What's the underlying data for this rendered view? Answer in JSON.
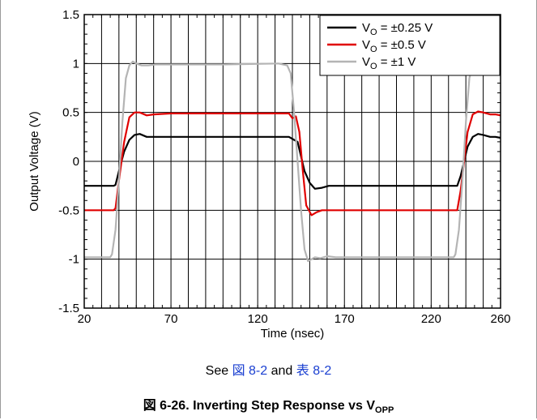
{
  "chart_data": {
    "type": "line",
    "xlabel": "Time (nsec)",
    "ylabel": "Output Voltage (V)",
    "xlim": [
      20,
      260
    ],
    "ylim": [
      -1.5,
      1.5
    ],
    "x_ticks": [
      20,
      70,
      120,
      170,
      220,
      260
    ],
    "y_ticks": [
      -1.5,
      -1,
      -0.5,
      0,
      0.5,
      1,
      1.5
    ],
    "x_tick_labels": [
      "20",
      "70",
      "120",
      "170",
      "220",
      "260"
    ],
    "y_tick_labels": [
      "-1.5",
      "-1",
      "-0.5",
      "0",
      "0.5",
      "1",
      "1.5"
    ],
    "grid": true,
    "legend_position": "top-right",
    "series": [
      {
        "name": "VO = ±0.25 V",
        "label_main": "V",
        "label_sub": "O",
        "label_rest": " = ±0.25 V",
        "color": "#000000",
        "x": [
          20,
          37,
          38,
          40,
          43,
          46,
          49,
          52,
          56,
          60,
          70,
          100,
          138,
          141,
          143,
          145,
          147,
          150,
          153,
          157,
          161,
          170,
          200,
          235,
          237,
          239,
          241,
          244,
          247,
          250,
          254,
          257,
          260
        ],
        "y": [
          -0.25,
          -0.25,
          -0.24,
          -0.1,
          0.1,
          0.22,
          0.27,
          0.28,
          0.25,
          0.25,
          0.25,
          0.25,
          0.25,
          0.22,
          0.2,
          0.05,
          -0.1,
          -0.22,
          -0.28,
          -0.27,
          -0.25,
          -0.25,
          -0.25,
          -0.25,
          -0.15,
          0.0,
          0.15,
          0.25,
          0.28,
          0.27,
          0.25,
          0.25,
          0.24
        ]
      },
      {
        "name": "VO = ±0.5 V",
        "label_main": "V",
        "label_sub": "O",
        "label_rest": " = ±0.5 V",
        "color": "#e00000",
        "x": [
          20,
          37,
          38,
          40,
          43,
          46,
          49,
          52,
          56,
          60,
          70,
          100,
          138,
          140,
          142,
          144,
          146,
          148,
          151,
          154,
          157,
          161,
          170,
          200,
          235,
          237,
          239,
          241,
          244,
          247,
          250,
          254,
          257,
          260
        ],
        "y": [
          -0.5,
          -0.5,
          -0.48,
          -0.2,
          0.2,
          0.45,
          0.5,
          0.5,
          0.47,
          0.48,
          0.49,
          0.49,
          0.49,
          0.44,
          0.46,
          0.3,
          -0.1,
          -0.45,
          -0.55,
          -0.52,
          -0.5,
          -0.5,
          -0.5,
          -0.5,
          -0.5,
          -0.3,
          0.0,
          0.3,
          0.48,
          0.51,
          0.5,
          0.48,
          0.48,
          0.47
        ]
      },
      {
        "name": "VO = ±1 V",
        "label_main": "V",
        "label_sub": "O",
        "label_rest": " = ±1 V",
        "color": "#b4b4b4",
        "x": [
          20,
          35,
          36,
          38,
          40,
          42,
          44,
          46,
          48,
          50,
          53,
          57,
          61,
          70,
          100,
          132,
          137,
          139,
          141,
          143,
          145,
          147,
          149,
          151,
          153,
          156,
          160,
          165,
          200,
          233,
          234,
          236,
          238,
          240,
          242,
          244,
          246,
          248,
          251,
          254,
          257,
          260
        ],
        "y": [
          -0.98,
          -0.98,
          -0.95,
          -0.7,
          -0.2,
          0.4,
          0.85,
          0.98,
          1.02,
          1.0,
          0.98,
          0.98,
          0.99,
          0.99,
          0.99,
          1.0,
          0.98,
          0.9,
          0.5,
          0.0,
          -0.5,
          -0.9,
          -1.02,
          -1.0,
          -0.98,
          -0.99,
          -0.97,
          -0.98,
          -0.98,
          -0.98,
          -0.95,
          -0.7,
          -0.2,
          0.4,
          0.85,
          0.98,
          1.02,
          1.0,
          0.98,
          0.98,
          0.99,
          0.99
        ]
      }
    ]
  },
  "note": {
    "prefix": "See ",
    "ref1": "図 8-2",
    "middle": " and ",
    "ref2": "表 8-2"
  },
  "caption": {
    "main": "図 6-26. Inverting Step Response vs V",
    "sub": "OPP"
  }
}
